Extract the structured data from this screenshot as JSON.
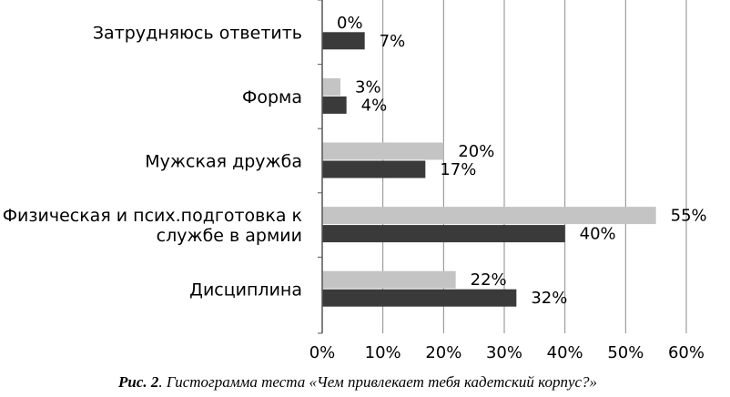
{
  "chart_data": {
    "type": "bar",
    "orientation": "horizontal",
    "categories": [
      "Затрудняюсь ответить",
      "Форма",
      "Мужская дружба",
      "Физическая и псих.подготовка к службе в армии",
      "Дисциплина"
    ],
    "category_lines": [
      [
        "Затрудняюсь ответить"
      ],
      [
        "Форма"
      ],
      [
        "Мужская дружба"
      ],
      [
        "Физическая и псих.подготовка к",
        "службе в армии"
      ],
      [
        "Дисциплина"
      ]
    ],
    "series": [
      {
        "values": [
          0,
          3,
          20,
          55,
          22
        ],
        "labels": [
          "0%",
          "3%",
          "20%",
          "55%",
          "22%"
        ],
        "color": "#c4c4c4"
      },
      {
        "values": [
          7,
          4,
          17,
          40,
          32
        ],
        "labels": [
          "7%",
          "4%",
          "17%",
          "40%",
          "32%"
        ],
        "color": "#3a3a3a"
      }
    ],
    "xlim": [
      0,
      60
    ],
    "ticks": [
      0,
      10,
      20,
      30,
      40,
      50,
      60
    ],
    "tick_labels": [
      "0%",
      "10%",
      "20%",
      "30%",
      "40%",
      "50%",
      "60%"
    ],
    "grid": true,
    "legend": "none"
  },
  "caption": {
    "prefix": "Рис. 2",
    "text": ". Гистограмма теста «Чем привлекает тебя кадетский корпус?»"
  }
}
